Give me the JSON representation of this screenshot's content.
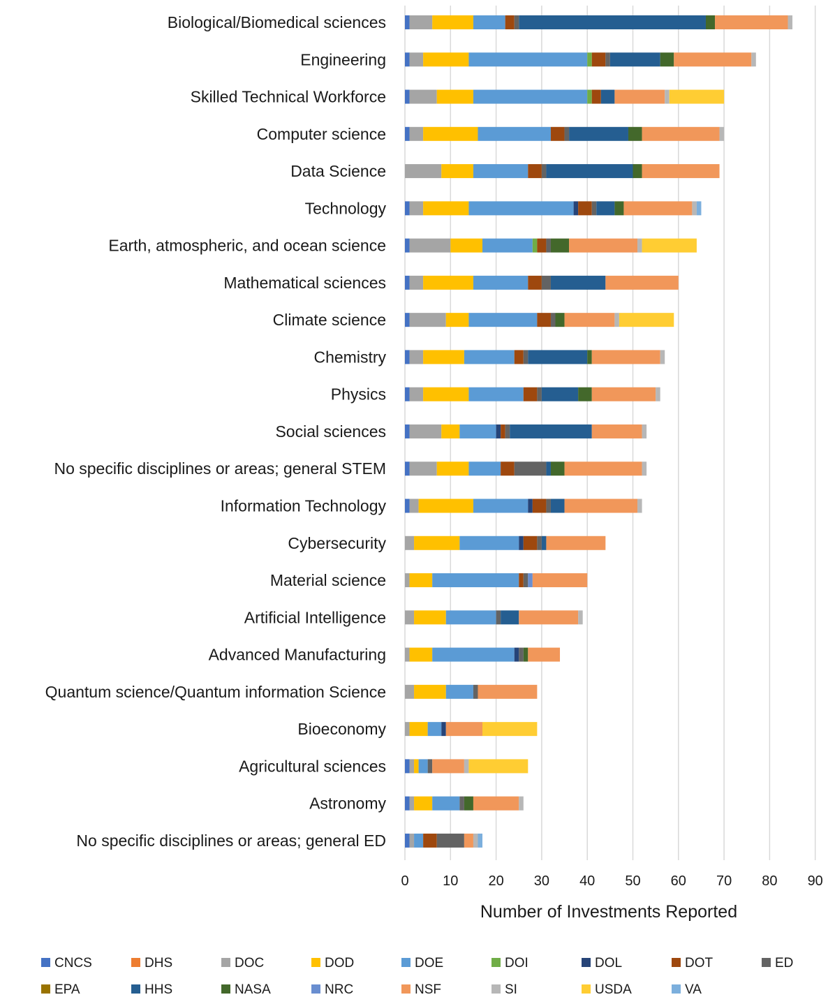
{
  "chart_data": {
    "type": "bar",
    "orientation": "horizontal",
    "stacked": true,
    "title": "",
    "xlabel": "Number of Investments Reported",
    "ylabel": "",
    "xlim": [
      0,
      90
    ],
    "xticks": [
      0,
      10,
      20,
      30,
      40,
      50,
      60,
      70,
      80,
      90
    ],
    "grid": "vertical",
    "legend_position": "bottom",
    "categories": [
      "Biological/Biomedical sciences",
      "Engineering",
      "Skilled Technical Workforce",
      "Computer science",
      "Data Science",
      "Technology",
      "Earth, atmospheric, and ocean science",
      "Mathematical sciences",
      "Climate science",
      "Chemistry",
      "Physics",
      "Social sciences",
      "No specific disciplines or areas; general STEM",
      "Information Technology",
      "Cybersecurity",
      "Material science",
      "Artificial Intelligence",
      "Advanced Manufacturing",
      "Quantum science/Quantum information Science",
      "Bioeconomy",
      "Agricultural sciences",
      "Astronomy",
      "No specific disciplines or areas; general ED"
    ],
    "series": [
      {
        "name": "CNCS",
        "color": "#4472C4",
        "values": [
          1,
          1,
          1,
          1,
          0,
          1,
          1,
          1,
          1,
          1,
          1,
          1,
          1,
          1,
          0,
          0,
          0,
          0,
          0,
          0,
          1,
          1,
          1
        ]
      },
      {
        "name": "DHS",
        "color": "#ED7D31",
        "values": [
          0,
          0,
          0,
          0,
          0,
          0,
          0,
          0,
          0,
          0,
          0,
          0,
          0,
          0,
          0,
          0,
          0,
          0,
          0,
          0,
          0,
          0,
          0
        ]
      },
      {
        "name": "DOC",
        "color": "#A5A5A5",
        "values": [
          5,
          3,
          6,
          3,
          8,
          3,
          9,
          3,
          8,
          3,
          3,
          7,
          6,
          2,
          2,
          1,
          2,
          1,
          2,
          1,
          1,
          1,
          1
        ]
      },
      {
        "name": "DOD",
        "color": "#FFC000",
        "values": [
          9,
          10,
          8,
          12,
          7,
          10,
          7,
          11,
          5,
          9,
          10,
          4,
          7,
          12,
          10,
          5,
          7,
          5,
          7,
          4,
          1,
          4,
          0
        ]
      },
      {
        "name": "DOE",
        "color": "#5B9BD5",
        "values": [
          7,
          26,
          25,
          16,
          12,
          23,
          11,
          12,
          15,
          11,
          12,
          8,
          7,
          12,
          13,
          19,
          11,
          18,
          6,
          3,
          2,
          6,
          2
        ]
      },
      {
        "name": "DOI",
        "color": "#70AD47",
        "values": [
          0,
          1,
          1,
          0,
          0,
          0,
          1,
          0,
          0,
          0,
          0,
          0,
          0,
          0,
          0,
          0,
          0,
          0,
          0,
          0,
          0,
          0,
          0
        ]
      },
      {
        "name": "DOL",
        "color": "#264478",
        "values": [
          0,
          0,
          0,
          0,
          0,
          1,
          0,
          0,
          0,
          0,
          0,
          1,
          0,
          1,
          1,
          0,
          0,
          1,
          0,
          1,
          0,
          0,
          0
        ]
      },
      {
        "name": "DOT",
        "color": "#9E480E",
        "values": [
          2,
          3,
          2,
          3,
          3,
          3,
          2,
          3,
          3,
          2,
          3,
          1,
          3,
          3,
          3,
          1,
          0,
          0,
          0,
          0,
          0,
          0,
          3
        ]
      },
      {
        "name": "ED",
        "color": "#636363",
        "values": [
          1,
          1,
          0,
          1,
          1,
          1,
          1,
          2,
          1,
          1,
          1,
          1,
          7,
          1,
          1,
          1,
          1,
          1,
          1,
          0,
          1,
          1,
          6
        ]
      },
      {
        "name": "EPA",
        "color": "#997300",
        "values": [
          0,
          0,
          0,
          0,
          0,
          0,
          0,
          0,
          0,
          0,
          0,
          0,
          0,
          0,
          0,
          0,
          0,
          0,
          0,
          0,
          0,
          0,
          0
        ]
      },
      {
        "name": "HHS",
        "color": "#255E91",
        "values": [
          41,
          11,
          3,
          13,
          19,
          4,
          0,
          12,
          0,
          13,
          8,
          18,
          1,
          3,
          1,
          0,
          4,
          0,
          0,
          0,
          0,
          0,
          0
        ]
      },
      {
        "name": "NASA",
        "color": "#43682B",
        "values": [
          2,
          3,
          0,
          3,
          2,
          2,
          4,
          0,
          2,
          1,
          3,
          0,
          3,
          0,
          0,
          0,
          0,
          1,
          0,
          0,
          0,
          2,
          0
        ]
      },
      {
        "name": "NRC",
        "color": "#698ED0",
        "values": [
          0,
          0,
          0,
          0,
          0,
          0,
          0,
          0,
          0,
          0,
          0,
          0,
          0,
          0,
          0,
          1,
          0,
          0,
          0,
          0,
          0,
          0,
          0
        ]
      },
      {
        "name": "NSF",
        "color": "#F1975A",
        "values": [
          16,
          17,
          11,
          17,
          17,
          15,
          15,
          16,
          11,
          15,
          14,
          11,
          17,
          16,
          13,
          12,
          13,
          7,
          13,
          8,
          7,
          10,
          2
        ]
      },
      {
        "name": "SI",
        "color": "#B7B7B7",
        "values": [
          1,
          1,
          1,
          1,
          0,
          1,
          1,
          0,
          1,
          1,
          1,
          1,
          1,
          1,
          0,
          0,
          1,
          0,
          0,
          0,
          1,
          1,
          1
        ]
      },
      {
        "name": "USDA",
        "color": "#FFCD33",
        "values": [
          0,
          0,
          12,
          0,
          0,
          0,
          12,
          0,
          12,
          0,
          0,
          0,
          0,
          0,
          0,
          0,
          0,
          0,
          0,
          12,
          13,
          0,
          0
        ]
      },
      {
        "name": "VA",
        "color": "#7CAFDD",
        "values": [
          0,
          0,
          0,
          0,
          0,
          1,
          0,
          0,
          0,
          0,
          0,
          0,
          0,
          0,
          0,
          0,
          0,
          0,
          0,
          0,
          0,
          0,
          1
        ]
      }
    ]
  }
}
